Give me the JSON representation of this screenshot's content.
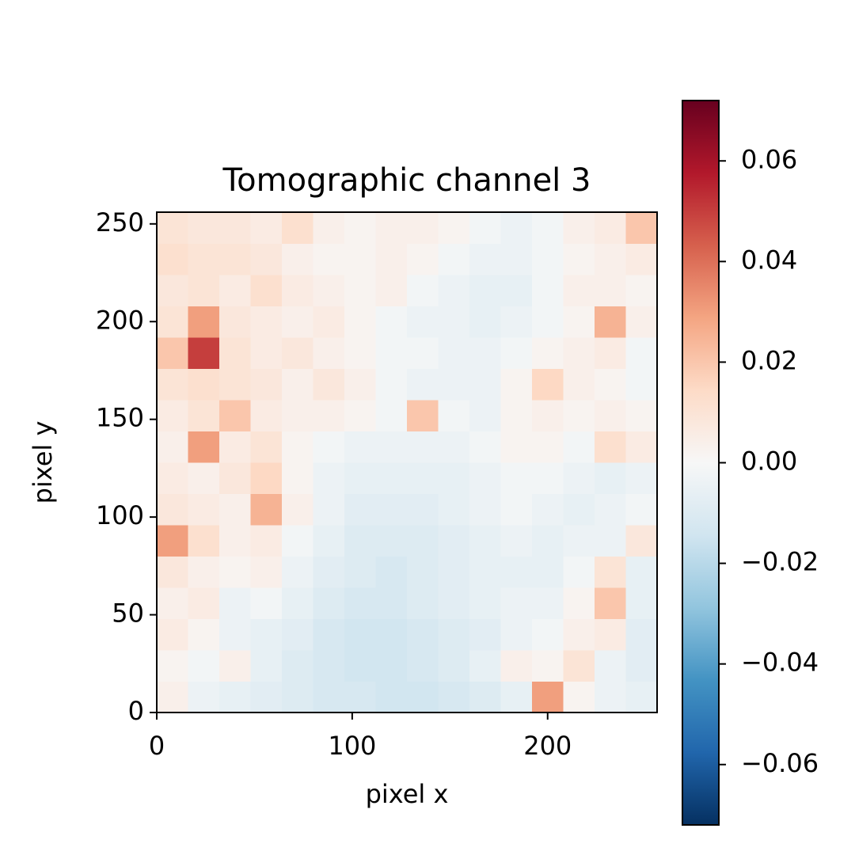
{
  "chart_data": {
    "type": "heatmap",
    "title": "Tomographic channel 3",
    "xlabel": "pixel x",
    "ylabel": "pixel y",
    "xlim": [
      0,
      256
    ],
    "ylim": [
      0,
      256
    ],
    "xticks": [
      0,
      100,
      200
    ],
    "yticks": [
      0,
      50,
      100,
      150,
      200,
      250
    ],
    "colormap": "RdBu_r",
    "clim": [
      -0.072,
      0.072
    ],
    "cticks": [
      {
        "value": -0.06,
        "label": "−0.06"
      },
      {
        "value": -0.04,
        "label": "−0.04"
      },
      {
        "value": -0.02,
        "label": "−0.02"
      },
      {
        "value": 0,
        "label": "0.00"
      },
      0.02,
      0.04,
      0.06
    ],
    "z": [
      [
        0.004,
        -0.004,
        -0.006,
        -0.008,
        -0.01,
        -0.012,
        -0.012,
        -0.014,
        -0.014,
        -0.012,
        -0.01,
        -0.006,
        0.03,
        0.002,
        -0.004,
        -0.006
      ],
      [
        0.002,
        -0.002,
        0.004,
        -0.006,
        -0.01,
        -0.012,
        -0.014,
        -0.014,
        -0.012,
        -0.01,
        -0.006,
        0.004,
        0.002,
        0.01,
        -0.004,
        -0.008
      ],
      [
        0.006,
        0.002,
        -0.004,
        -0.006,
        -0.008,
        -0.012,
        -0.014,
        -0.014,
        -0.012,
        -0.01,
        -0.008,
        -0.004,
        -0.002,
        0.004,
        0.006,
        -0.008
      ],
      [
        0.004,
        0.006,
        -0.004,
        -0.002,
        -0.006,
        -0.01,
        -0.012,
        -0.012,
        -0.01,
        -0.008,
        -0.006,
        -0.004,
        -0.004,
        0.002,
        0.02,
        -0.006
      ],
      [
        0.008,
        0.004,
        0.002,
        0.004,
        -0.004,
        -0.008,
        -0.01,
        -0.012,
        -0.01,
        -0.008,
        -0.006,
        -0.006,
        -0.006,
        -0.002,
        0.01,
        -0.006
      ],
      [
        0.03,
        0.012,
        0.004,
        0.006,
        -0.002,
        -0.006,
        -0.01,
        -0.01,
        -0.01,
        -0.008,
        -0.006,
        -0.004,
        -0.006,
        -0.004,
        -0.004,
        0.008
      ],
      [
        0.008,
        0.006,
        0.004,
        0.025,
        0.004,
        -0.004,
        -0.008,
        -0.008,
        -0.008,
        -0.006,
        -0.004,
        -0.002,
        -0.004,
        -0.006,
        -0.004,
        -0.002
      ],
      [
        0.006,
        0.004,
        0.008,
        0.015,
        0.002,
        -0.004,
        -0.006,
        -0.006,
        -0.006,
        -0.006,
        -0.004,
        -0.002,
        -0.002,
        -0.004,
        -0.006,
        -0.004
      ],
      [
        0.004,
        0.03,
        0.006,
        0.01,
        0.002,
        -0.002,
        -0.004,
        -0.004,
        -0.004,
        -0.004,
        -0.002,
        0.002,
        0.002,
        -0.002,
        0.012,
        0.006
      ],
      [
        0.006,
        0.01,
        0.02,
        0.006,
        0.004,
        0.004,
        0.002,
        -0.002,
        0.02,
        -0.002,
        -0.004,
        0.002,
        0.004,
        0.002,
        0.004,
        0.002
      ],
      [
        0.01,
        0.012,
        0.01,
        0.008,
        0.004,
        0.008,
        0.004,
        -0.002,
        -0.004,
        -0.004,
        -0.004,
        0.002,
        0.015,
        0.004,
        0.002,
        -0.002
      ],
      [
        0.02,
        0.05,
        0.01,
        0.006,
        0.008,
        0.004,
        0.002,
        -0.002,
        -0.002,
        -0.004,
        -0.004,
        -0.002,
        0.002,
        0.004,
        0.006,
        -0.002
      ],
      [
        0.01,
        0.03,
        0.008,
        0.006,
        0.004,
        0.006,
        0.002,
        -0.002,
        -0.004,
        -0.004,
        -0.006,
        -0.004,
        -0.002,
        0.002,
        0.025,
        0.004
      ],
      [
        0.008,
        0.01,
        0.006,
        0.012,
        0.006,
        0.004,
        0.002,
        0.004,
        -0.002,
        -0.004,
        -0.006,
        -0.006,
        -0.002,
        0.004,
        0.004,
        0.002
      ],
      [
        0.012,
        0.01,
        0.01,
        0.008,
        0.004,
        0.002,
        0.002,
        0.004,
        0.002,
        -0.002,
        -0.004,
        -0.004,
        -0.002,
        0.002,
        0.004,
        0.006
      ],
      [
        0.01,
        0.008,
        0.008,
        0.006,
        0.012,
        0.004,
        0.002,
        0.004,
        0.004,
        0.002,
        -0.002,
        -0.004,
        -0.002,
        0.004,
        0.006,
        0.02
      ]
    ]
  }
}
